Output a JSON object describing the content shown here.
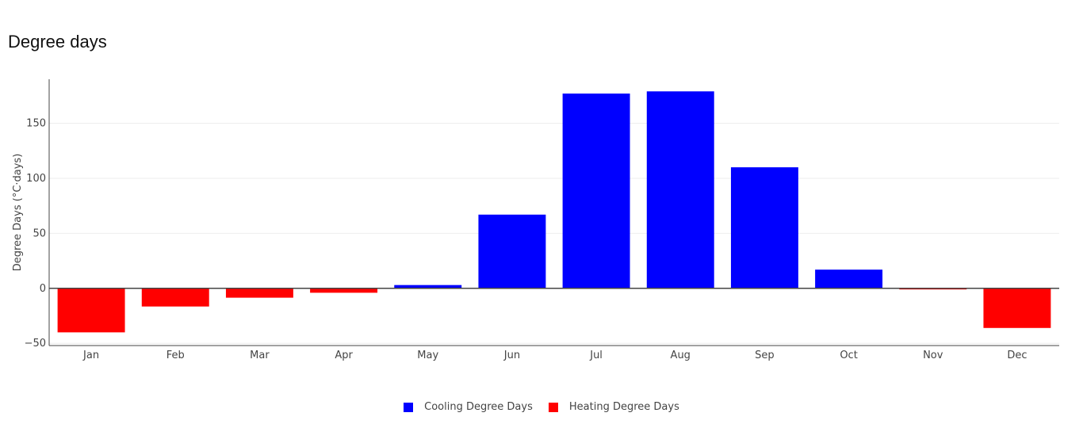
{
  "title": "Degree days",
  "colors": {
    "cooling": "#0000ff",
    "heating": "#ff0000",
    "grid": "#eeeeee",
    "axis": "#444444"
  },
  "chart_data": {
    "type": "bar",
    "categories": [
      "Jan",
      "Feb",
      "Mar",
      "Apr",
      "May",
      "Jun",
      "Jul",
      "Aug",
      "Sep",
      "Oct",
      "Nov",
      "Dec"
    ],
    "series": [
      {
        "name": "Cooling Degree Days",
        "values": [
          0,
          0,
          0,
          0,
          3,
          67,
          177,
          179,
          110,
          17,
          0,
          0
        ]
      },
      {
        "name": "Heating Degree Days",
        "values": [
          -40,
          -16.5,
          -8.5,
          -4,
          0,
          0,
          0,
          0,
          0,
          0,
          -1,
          -36
        ]
      }
    ],
    "xlabel": "",
    "ylabel": "Degree Days (°C·days)",
    "ylim": [
      -52,
      190
    ],
    "yticks": [
      -50,
      0,
      50,
      100,
      150
    ],
    "barmode": "relative",
    "grid": true,
    "legend": "bottom-center"
  }
}
